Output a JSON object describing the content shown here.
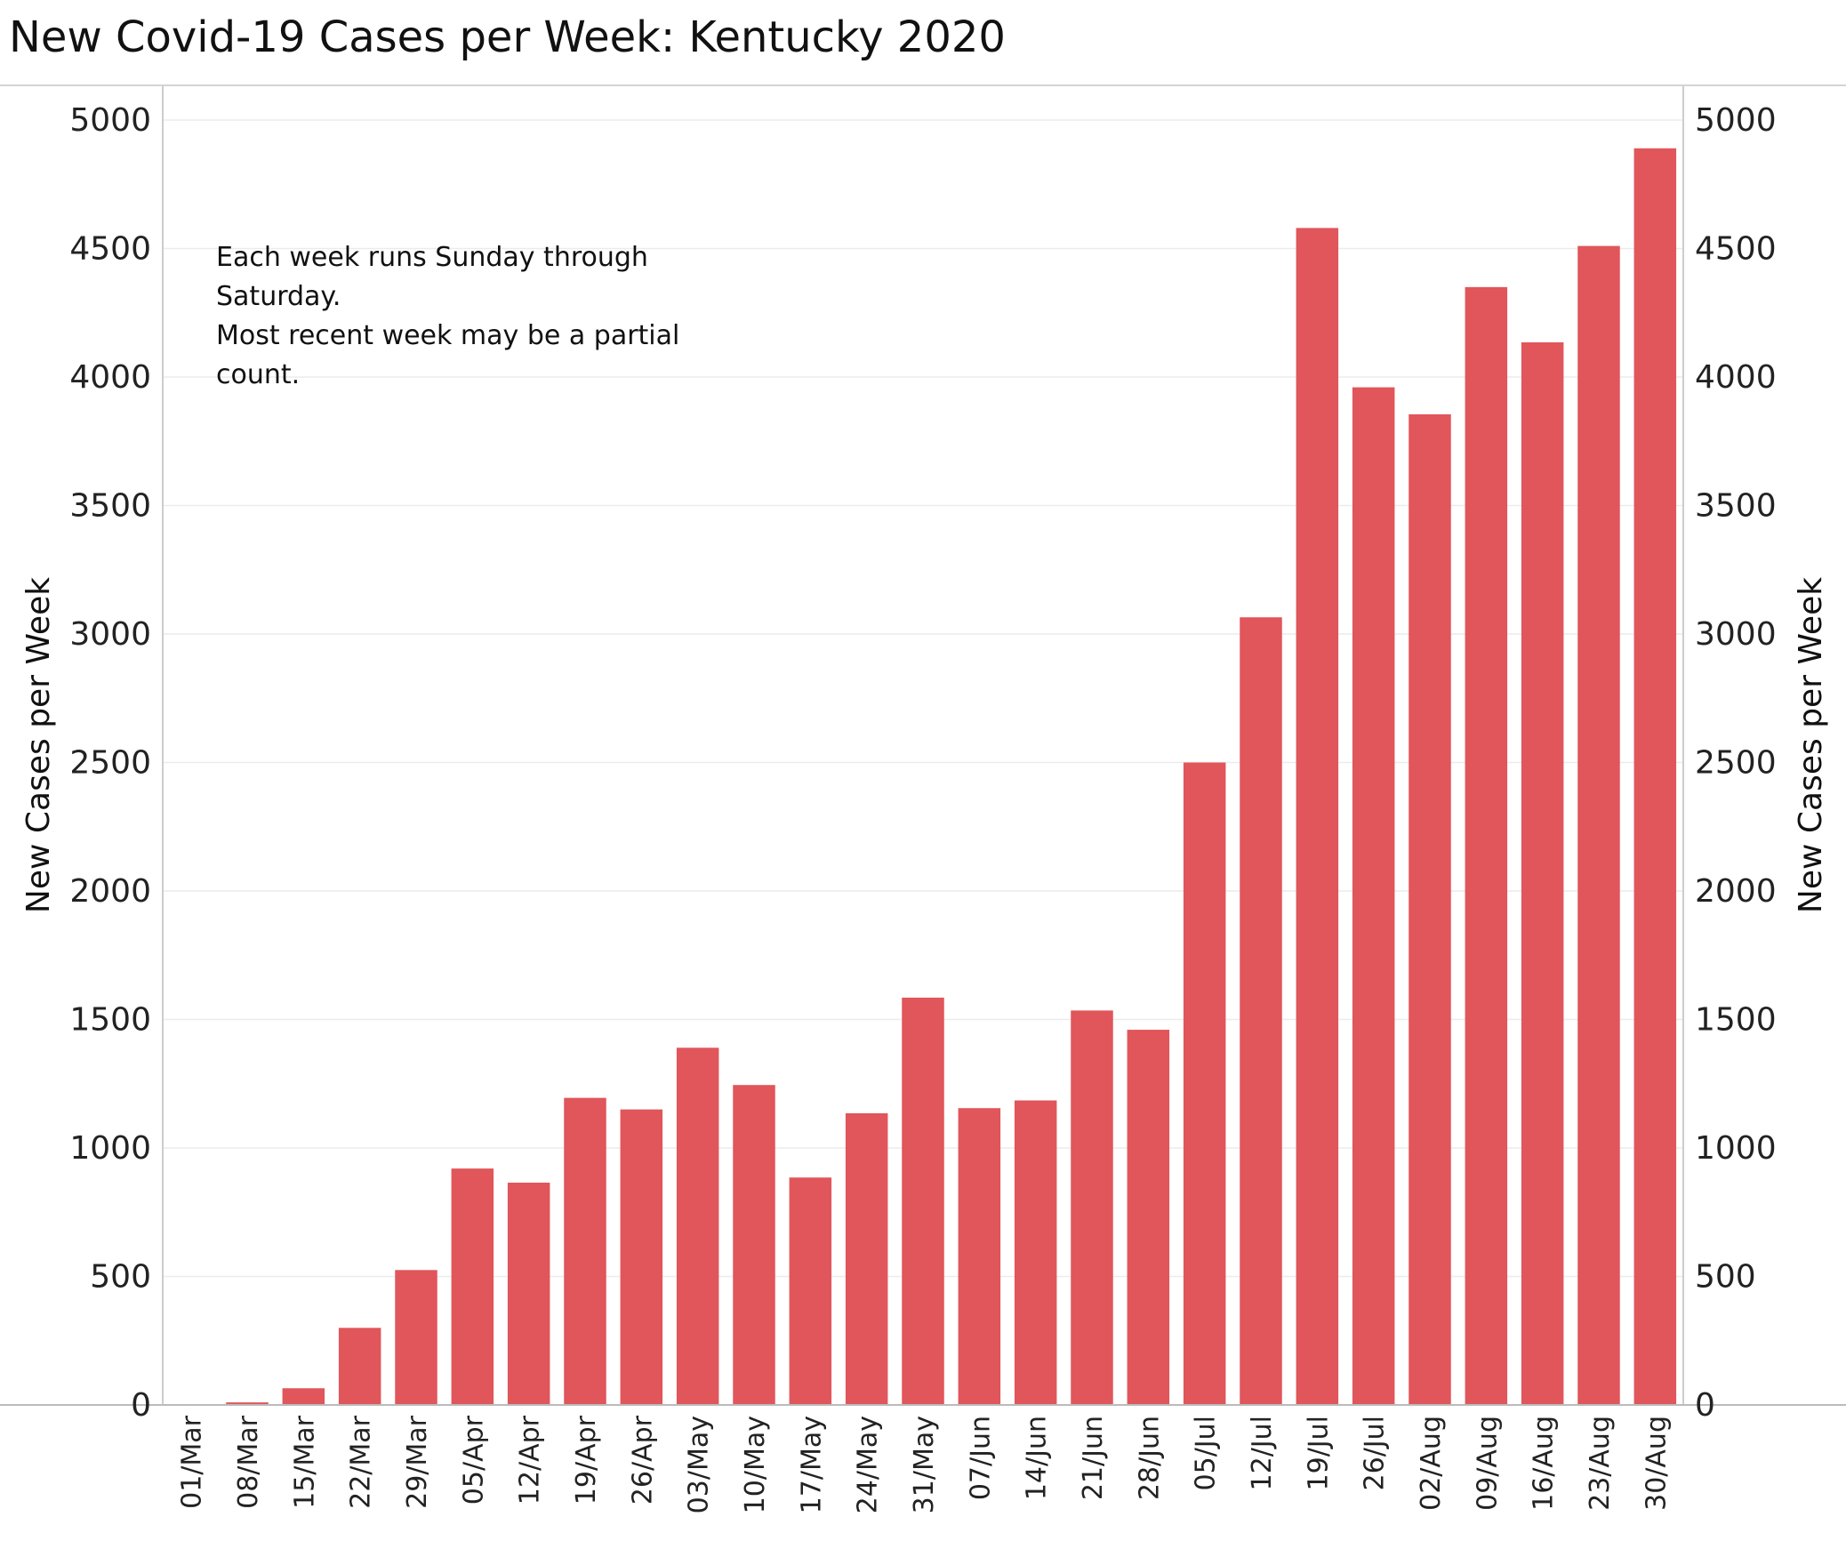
{
  "chart_data": {
    "type": "bar",
    "title": "New Covid-19 Cases per Week:  Kentucky 2020",
    "ylabel": "New Cases per Week",
    "ylabel_right": "New Cases per Week",
    "ylim": [
      0,
      5000
    ],
    "yticks": [
      "0",
      "500",
      "1000",
      "1500",
      "2000",
      "2500",
      "3000",
      "3500",
      "4000",
      "4500",
      "5000"
    ],
    "categories": [
      "01/Mar",
      "08/Mar",
      "15/Mar",
      "22/Mar",
      "29/Mar",
      "05/Apr",
      "12/Apr",
      "19/Apr",
      "26/Apr",
      "03/May",
      "10/May",
      "17/May",
      "24/May",
      "31/May",
      "07/Jun",
      "14/Jun",
      "21/Jun",
      "28/Jun",
      "05/Jul",
      "12/Jul",
      "19/Jul",
      "26/Jul",
      "02/Aug",
      "09/Aug",
      "16/Aug",
      "23/Aug",
      "30/Aug"
    ],
    "values": [
      0,
      10,
      65,
      300,
      525,
      920,
      865,
      1195,
      1150,
      1390,
      1245,
      885,
      1135,
      1585,
      1155,
      1185,
      1535,
      1460,
      2500,
      3065,
      4580,
      3960,
      3855,
      4350,
      4135,
      4510,
      4890
    ],
    "bar_color": "#e0565b",
    "grid": true,
    "annotation": [
      "Each week runs Sunday through Saturday.",
      "Most recent week may be a partial count."
    ]
  }
}
